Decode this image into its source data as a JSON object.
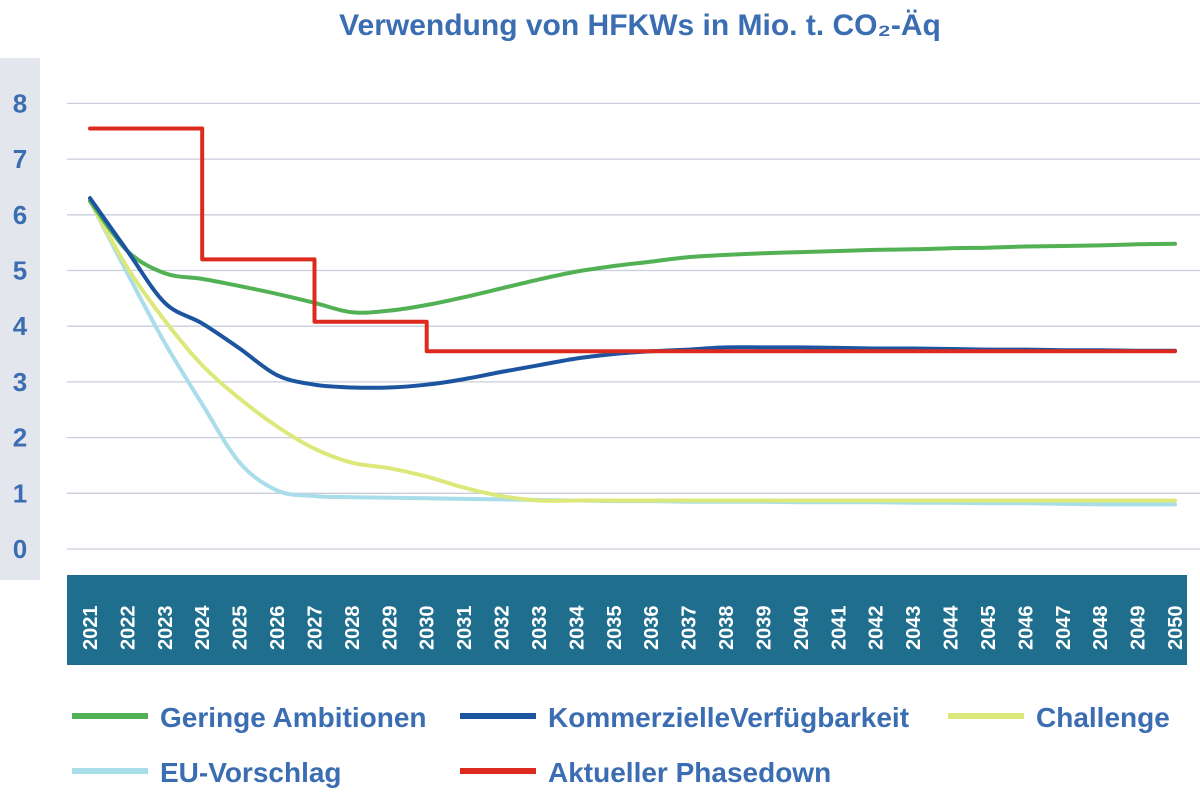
{
  "chart_data": {
    "type": "line",
    "title": "Verwendung von HFKWs in Mio. t. CO₂-Äq",
    "xlabel": "",
    "ylabel": "",
    "ylim": [
      0,
      8
    ],
    "yticks": [
      "0",
      "1",
      "2",
      "3",
      "4",
      "5",
      "6",
      "7",
      "8"
    ],
    "x": [
      "2021",
      "2022",
      "2023",
      "2024",
      "2025",
      "2026",
      "2027",
      "2028",
      "2029",
      "2030",
      "2031",
      "2032",
      "2033",
      "2034",
      "2035",
      "2036",
      "2037",
      "2038",
      "2039",
      "2040",
      "2041",
      "2042",
      "2043",
      "2044",
      "2045",
      "2046",
      "2047",
      "2048",
      "2049",
      "2050"
    ],
    "grid": true,
    "legend_placement": "bottom",
    "series": [
      {
        "name": "Geringe Ambitionen",
        "color": "#52b155",
        "step": false,
        "values": [
          6.25,
          5.35,
          4.95,
          4.85,
          4.72,
          4.58,
          4.42,
          4.25,
          4.28,
          4.38,
          4.52,
          4.68,
          4.84,
          4.98,
          5.08,
          5.16,
          5.24,
          5.28,
          5.31,
          5.33,
          5.35,
          5.37,
          5.38,
          5.4,
          5.41,
          5.43,
          5.44,
          5.45,
          5.47,
          5.48
        ]
      },
      {
        "name": "KommerzielleVerfügbarkeit",
        "color": "#1c54a0",
        "step": false,
        "values": [
          6.3,
          5.35,
          4.42,
          4.05,
          3.6,
          3.12,
          2.95,
          2.9,
          2.9,
          2.95,
          3.05,
          3.18,
          3.3,
          3.42,
          3.5,
          3.55,
          3.58,
          3.62,
          3.62,
          3.62,
          3.61,
          3.6,
          3.6,
          3.59,
          3.58,
          3.58,
          3.57,
          3.57,
          3.56,
          3.56
        ]
      },
      {
        "name": "Challenge",
        "color": "#dde87a",
        "step": false,
        "values": [
          6.25,
          5.05,
          4.1,
          3.3,
          2.7,
          2.2,
          1.8,
          1.55,
          1.45,
          1.3,
          1.1,
          0.95,
          0.87,
          0.87,
          0.87,
          0.87,
          0.87,
          0.87,
          0.87,
          0.87,
          0.87,
          0.87,
          0.87,
          0.87,
          0.87,
          0.87,
          0.87,
          0.87,
          0.87,
          0.87
        ]
      },
      {
        "name": "EU-Vorschlag",
        "color": "#a9ddea",
        "step": false,
        "values": [
          6.25,
          4.95,
          3.7,
          2.6,
          1.55,
          1.05,
          0.95,
          0.93,
          0.92,
          0.91,
          0.9,
          0.89,
          0.88,
          0.87,
          0.86,
          0.86,
          0.85,
          0.85,
          0.85,
          0.84,
          0.84,
          0.84,
          0.83,
          0.83,
          0.82,
          0.82,
          0.81,
          0.8,
          0.8,
          0.8
        ]
      },
      {
        "name": "Aktueller Phasedown",
        "color": "#dd2a1f",
        "step": true,
        "values": [
          7.55,
          7.55,
          7.55,
          5.2,
          5.2,
          5.2,
          4.08,
          4.08,
          4.08,
          3.55,
          3.55,
          3.55,
          3.55,
          3.55,
          3.55,
          3.55,
          3.55,
          3.55,
          3.55,
          3.55,
          3.55,
          3.55,
          3.55,
          3.55,
          3.55,
          3.55,
          3.55,
          3.55,
          3.55,
          3.55
        ]
      }
    ]
  }
}
